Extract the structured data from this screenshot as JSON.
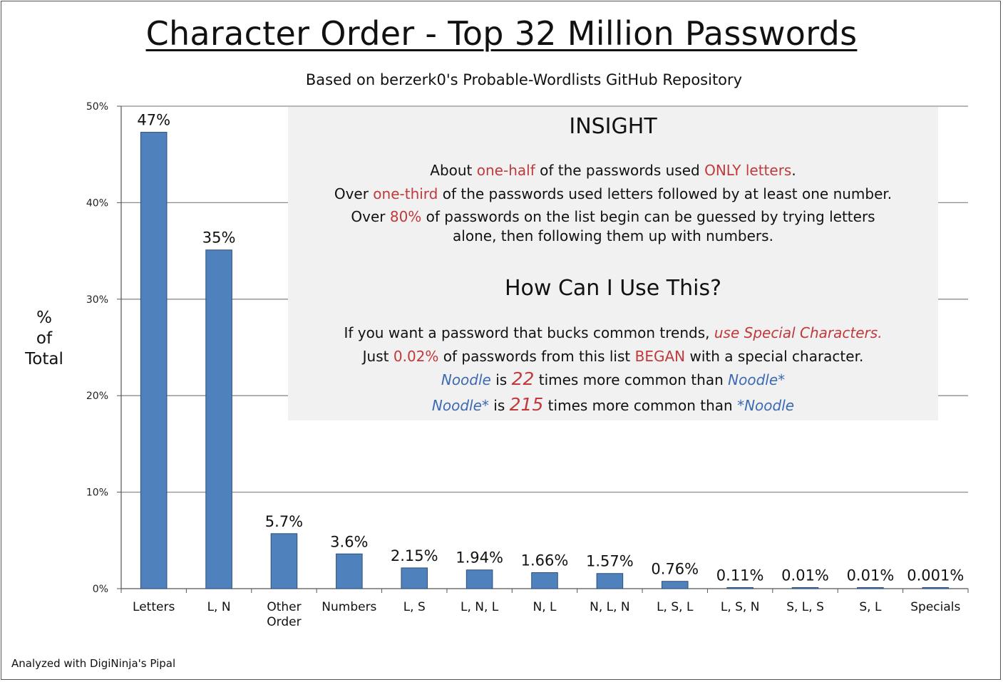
{
  "title": "Character Order - Top 32 Million Passwords",
  "subtitle": "Based on berzerk0's Probable-Wordlists GitHub Repository",
  "ylabel": [
    "%",
    "of",
    "Total"
  ],
  "footer": "Analyzed with DigiNinja's Pipal",
  "colors": {
    "bar": "#4f81bd",
    "bar_edge": "#2c4f7a",
    "highlight_red": "#c0393b",
    "highlight_blue": "#3c6ab2",
    "insight_bg": "#f1f1f1"
  },
  "insight": {
    "heading": "INSIGHT",
    "line1": {
      "a": "About ",
      "b": "one-half",
      "c": " of the passwords used ",
      "d": "ONLY letters",
      "e": "."
    },
    "line2": {
      "a": "Over ",
      "b": "one-third",
      "c": " of the passwords used letters followed by at least one number."
    },
    "line3": {
      "a": "Over ",
      "b": "80%",
      "c": " of passwords on the list begin can be guessed by trying letters"
    },
    "line4": "alone, then following them up with numbers."
  },
  "use": {
    "heading": "How Can I Use This?",
    "line1": {
      "a": "If you want a password that bucks common trends, ",
      "b": "use Special Characters."
    },
    "line2": {
      "a": "Just ",
      "b": "0.02%",
      "c": " of passwords from this list ",
      "d": "BEGAN",
      "e": " with a special character."
    },
    "line3": {
      "a": "Noodle",
      "b": " is ",
      "c": "22",
      "d": " times more common than ",
      "e": "Noodle*"
    },
    "line4": {
      "a": "Noodle*",
      "b": " is ",
      "c": "215",
      "d": " times more common than ",
      "e": "*Noodle"
    }
  },
  "chart_data": {
    "type": "bar",
    "title": "Character Order - Top 32 Million Passwords",
    "subtitle": "Based on berzerk0's Probable-Wordlists GitHub Repository",
    "ylabel": "% of Total",
    "xlabel": "",
    "ylim": [
      0,
      50
    ],
    "yticks": [
      "0%",
      "10%",
      "20%",
      "30%",
      "40%",
      "50%"
    ],
    "grid": true,
    "categories": [
      [
        "Letters"
      ],
      [
        "L, N"
      ],
      [
        "Other",
        "Order"
      ],
      [
        "Numbers"
      ],
      [
        "L, S"
      ],
      [
        "L, N, L"
      ],
      [
        "N, L"
      ],
      [
        "N, L, N"
      ],
      [
        "L, S, L"
      ],
      [
        "L, S, N"
      ],
      [
        "S, L, S"
      ],
      [
        "S, L"
      ],
      [
        "Specials"
      ]
    ],
    "values": [
      47.3,
      35.1,
      5.7,
      3.6,
      2.15,
      1.94,
      1.66,
      1.57,
      0.76,
      0.11,
      0.01,
      0.01,
      0.001
    ],
    "data_labels": [
      "47%",
      "35%",
      "5.7%",
      "3.6%",
      "2.15%",
      "1.94%",
      "1.66%",
      "1.57%",
      "0.76%",
      "0.11%",
      "0.01%",
      "0.01%",
      "0.001%"
    ]
  }
}
